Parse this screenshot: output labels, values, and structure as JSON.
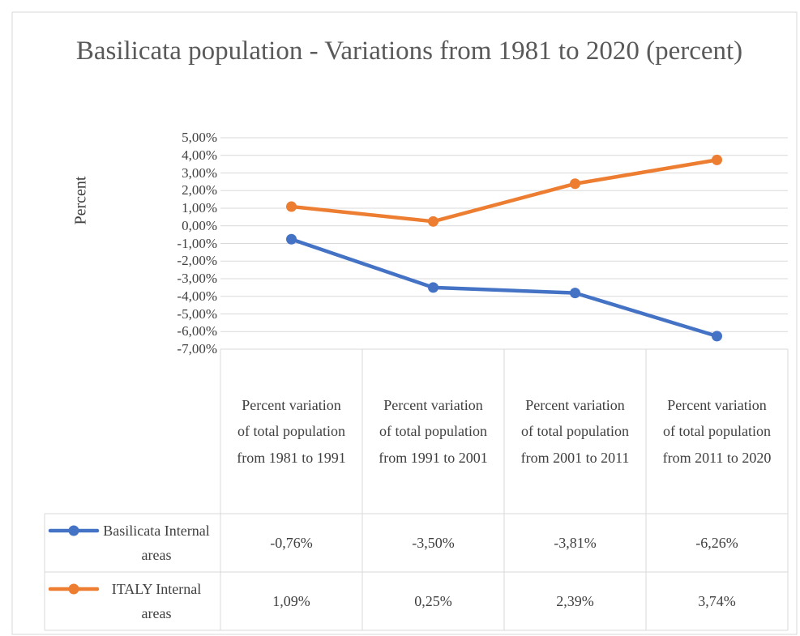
{
  "chart_data": {
    "type": "line",
    "title": "Basilicata population - Variations from 1981 to 2020 (percent)",
    "ylabel": "Percent",
    "categories": [
      "Percent variation of total population from 1981 to 1991",
      "Percent variation of total population from 1991 to 2001",
      "Percent variation of total population from 2001 to 2011",
      "Percent variation of total population from 2011 to 2020"
    ],
    "series": [
      {
        "name": "Basilicata Internal areas",
        "color": "#4472c4",
        "values": [
          -0.76,
          -3.5,
          -3.81,
          -6.26
        ],
        "value_labels": [
          "-0,76%",
          "-3,50%",
          "-3,81%",
          "-6,26%"
        ]
      },
      {
        "name": "ITALY Internal areas",
        "color": "#ed7d31",
        "values": [
          1.09,
          0.25,
          2.39,
          3.74
        ],
        "value_labels": [
          "1,09%",
          "0,25%",
          "2,39%",
          "3,74%"
        ]
      }
    ],
    "ylim": [
      -7,
      5
    ],
    "yticks": [
      {
        "value": 5,
        "label": "5,00%"
      },
      {
        "value": 4,
        "label": "4,00%"
      },
      {
        "value": 3,
        "label": "3,00%"
      },
      {
        "value": 2,
        "label": "2,00%"
      },
      {
        "value": 1,
        "label": "1,00%"
      },
      {
        "value": 0,
        "label": "0,00%"
      },
      {
        "value": -1,
        "label": "-1,00%"
      },
      {
        "value": -2,
        "label": "-2,00%"
      },
      {
        "value": -3,
        "label": "-3,00%"
      },
      {
        "value": -4,
        "label": "-4,00%"
      },
      {
        "value": -5,
        "label": "-5,00%"
      },
      {
        "value": -6,
        "label": "-6,00%"
      },
      {
        "value": -7,
        "label": "-7,00%"
      }
    ],
    "grid": true
  }
}
